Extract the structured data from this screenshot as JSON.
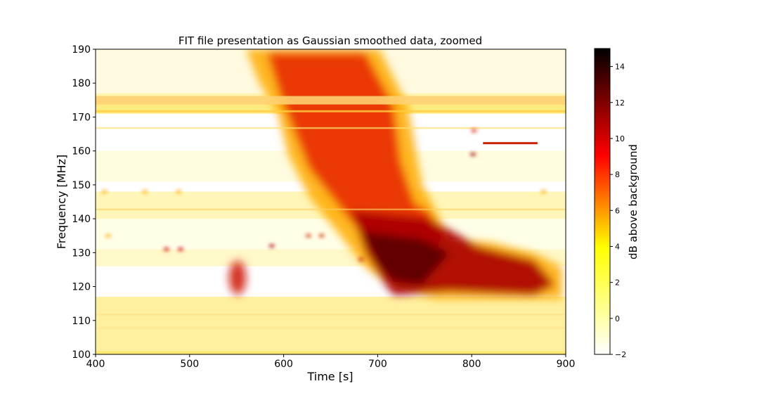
{
  "chart_data": {
    "type": "heatmap",
    "title": "FIT file presentation as Gaussian smoothed data, zoomed",
    "xlabel": "Time [s]",
    "ylabel": "Frequency [MHz]",
    "xlim": [
      400,
      900
    ],
    "ylim": [
      100,
      190
    ],
    "x_ticks": [
      "400",
      "500",
      "600",
      "700",
      "800",
      "900"
    ],
    "y_ticks": [
      "100",
      "110",
      "120",
      "130",
      "140",
      "150",
      "160",
      "170",
      "180",
      "190"
    ],
    "colorbar": {
      "label": "dB above background",
      "range": [
        -2,
        15
      ],
      "ticks": [
        "−2",
        "0",
        "2",
        "4",
        "6",
        "8",
        "10",
        "12",
        "14"
      ],
      "colormap": "hot_r"
    },
    "features": [
      {
        "time": [
          560,
          720
        ],
        "freq": [
          140,
          190
        ],
        "value_db": 10
      },
      {
        "time": [
          690,
          870
        ],
        "freq": [
          118,
          140
        ],
        "value_db": 12
      },
      {
        "time": [
          540,
          580
        ],
        "freq": [
          117,
          128
        ],
        "value_db": 8
      }
    ]
  }
}
